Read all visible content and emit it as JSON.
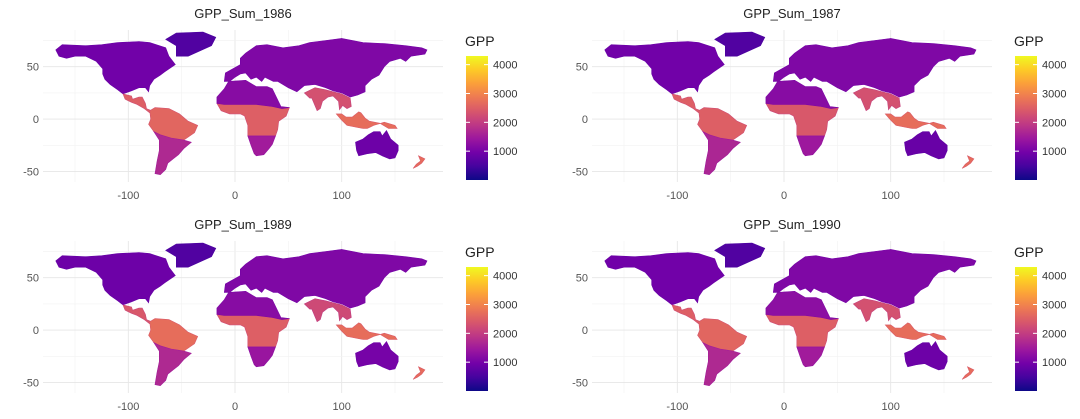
{
  "chart_data": [
    {
      "type": "heatmap",
      "subtype": "choropleth-raster-map",
      "title": "GPP_Sum_1986",
      "x_ticks": [
        -100,
        0,
        100
      ],
      "y_ticks": [
        -50,
        0,
        50
      ],
      "xlim": [
        -180,
        195
      ],
      "ylim": [
        -60,
        85
      ],
      "legend": {
        "title": "GPP",
        "ticks": [
          1000,
          2000,
          3000,
          4000
        ],
        "range": [
          0,
          4300
        ],
        "position": "right"
      },
      "colormap": "plasma",
      "region_values": {
        "north_america": 950,
        "greenland": 600,
        "central_america": 2500,
        "amazon": 2600,
        "southern_south_america": 1700,
        "europe_asia": 1100,
        "south_asia": 2300,
        "africa_tropics": 2500,
        "africa_north": 1200,
        "africa_south": 1500,
        "southeast_asia": 2700,
        "australia": 900,
        "new_zealand": 2700
      }
    },
    {
      "type": "heatmap",
      "subtype": "choropleth-raster-map",
      "title": "GPP_Sum_1987",
      "x_ticks": [
        -100,
        0,
        100
      ],
      "y_ticks": [
        -50,
        0,
        50
      ],
      "xlim": [
        -180,
        195
      ],
      "ylim": [
        -60,
        85
      ],
      "legend": {
        "title": "GPP",
        "ticks": [
          1000,
          2000,
          3000,
          4000
        ],
        "range": [
          0,
          4300
        ],
        "position": "right"
      },
      "colormap": "plasma",
      "region_values": {
        "north_america": 950,
        "greenland": 600,
        "central_america": 2500,
        "amazon": 2500,
        "southern_south_america": 1650,
        "europe_asia": 1100,
        "south_asia": 2300,
        "africa_tropics": 2400,
        "africa_north": 1200,
        "africa_south": 1450,
        "southeast_asia": 2700,
        "australia": 850,
        "new_zealand": 2700
      }
    },
    {
      "type": "heatmap",
      "subtype": "choropleth-raster-map",
      "title": "GPP_Sum_1989",
      "x_ticks": [
        -100,
        0,
        100
      ],
      "y_ticks": [
        -50,
        0,
        50
      ],
      "xlim": [
        -180,
        195
      ],
      "ylim": [
        -60,
        85
      ],
      "legend": {
        "title": "GPP",
        "ticks": [
          1000,
          2000,
          3000,
          4000
        ],
        "range": [
          0,
          4300
        ],
        "position": "right"
      },
      "colormap": "plasma",
      "region_values": {
        "north_america": 900,
        "greenland": 600,
        "central_america": 2400,
        "amazon": 2700,
        "southern_south_america": 1700,
        "europe_asia": 1100,
        "south_asia": 2200,
        "africa_tropics": 2500,
        "africa_north": 1200,
        "africa_south": 1400,
        "southeast_asia": 2700,
        "australia": 1000,
        "new_zealand": 2700
      }
    },
    {
      "type": "heatmap",
      "subtype": "choropleth-raster-map",
      "title": "GPP_Sum_1990",
      "x_ticks": [
        -100,
        0,
        100
      ],
      "y_ticks": [
        -50,
        0,
        50
      ],
      "xlim": [
        -180,
        195
      ],
      "ylim": [
        -60,
        85
      ],
      "legend": {
        "title": "GPP",
        "ticks": [
          1000,
          2000,
          3000,
          4000
        ],
        "range": [
          0,
          4300
        ],
        "position": "right"
      },
      "colormap": "plasma",
      "region_values": {
        "north_america": 950,
        "greenland": 600,
        "central_america": 2500,
        "amazon": 2600,
        "southern_south_america": 1700,
        "europe_asia": 1100,
        "south_asia": 2300,
        "africa_tropics": 2500,
        "africa_north": 1250,
        "africa_south": 1500,
        "southeast_asia": 2700,
        "australia": 900,
        "new_zealand": 2700
      }
    }
  ]
}
